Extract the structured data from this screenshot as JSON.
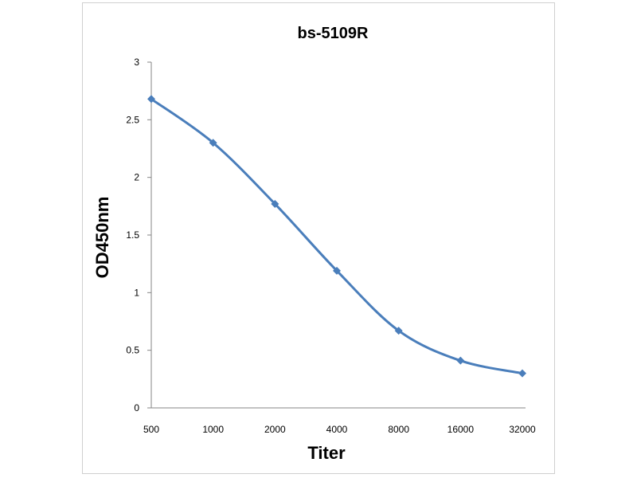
{
  "chart_data": {
    "type": "line",
    "title": "bs-5109R",
    "xlabel": "Titer",
    "ylabel": "OD450nm",
    "categories": [
      "500",
      "1000",
      "2000",
      "4000",
      "8000",
      "16000",
      "32000"
    ],
    "series": [
      {
        "values": [
          2.68,
          2.3,
          1.77,
          1.19,
          0.67,
          0.41,
          0.3
        ]
      }
    ],
    "ylim": [
      0,
      3
    ],
    "yticks": [
      "0",
      "0.5",
      "1",
      "1.5",
      "2",
      "2.5",
      "3"
    ],
    "grid": false,
    "legend": "none",
    "line_color": "#4A7EBB",
    "marker": "diamond",
    "smooth": true
  }
}
